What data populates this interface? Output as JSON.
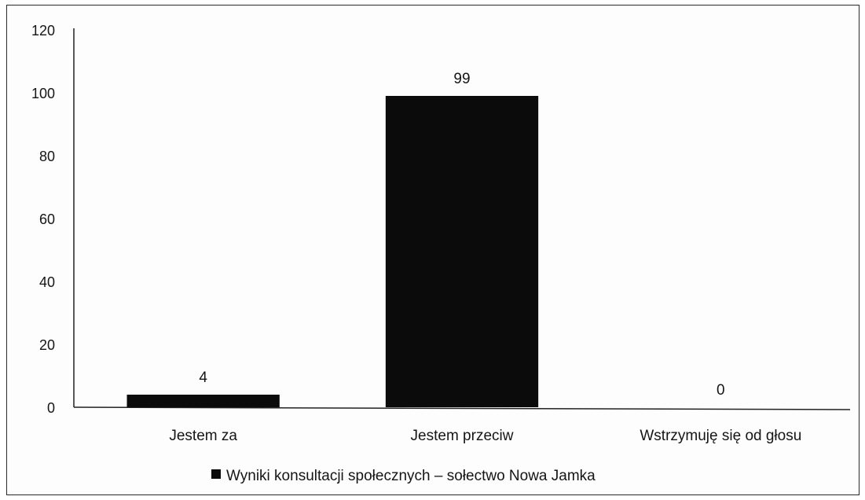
{
  "chart_data": {
    "type": "bar",
    "categories": [
      "Jestem za",
      "Jestem przeciw",
      "Wstrzymuję się od głosu"
    ],
    "series": [
      {
        "name": "Wyniki konsultacji społecznych – sołectwo Nowa Jamka",
        "values": [
          4,
          99,
          0
        ],
        "color": "#0b0b0b"
      }
    ],
    "data_labels": [
      "4",
      "99",
      "0"
    ],
    "ylim": [
      0,
      120
    ],
    "yticks": [
      0,
      20,
      40,
      60,
      80,
      100,
      120
    ],
    "ytick_labels": [
      "0",
      "20",
      "40",
      "60",
      "80",
      "100",
      "120"
    ],
    "title": "",
    "xlabel": "",
    "ylabel": "",
    "grid": false,
    "legend": {
      "position": "bottom",
      "label": "Wyniki konsultacji społecznych – sołectwo Nowa Jamka"
    }
  }
}
